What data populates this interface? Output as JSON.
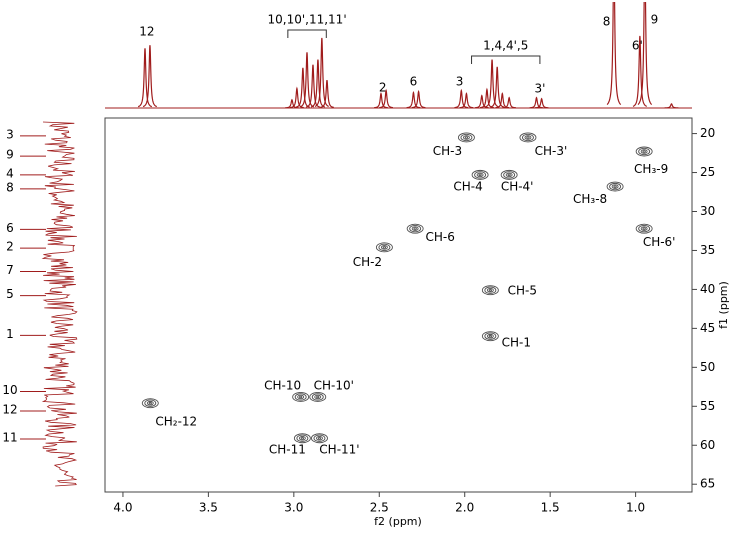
{
  "chart_data": {
    "type": "hsqc",
    "xlabel": "f2 (ppm)",
    "ylabel": "f1 (ppm)",
    "xlim": [
      4.105,
      0.67
    ],
    "xticks": [
      {
        "value": 4,
        "label": "4.0"
      },
      {
        "value": 3.5,
        "label": "3.5"
      },
      {
        "value": 3,
        "label": "3.0"
      },
      {
        "value": 2.5,
        "label": "2.5"
      },
      {
        "value": 2,
        "label": "2.0"
      },
      {
        "value": 1.5,
        "label": "1.5"
      },
      {
        "value": 1,
        "label": "1.0"
      }
    ],
    "ylim": [
      18,
      66
    ],
    "yticks": [
      20,
      25,
      30,
      35,
      40,
      45,
      50,
      55,
      60,
      65
    ],
    "color": "#a01c1c",
    "contour_color": "#505050",
    "cross_peaks": [
      {
        "label": "CH-3",
        "f2": 1.99,
        "f1": 20.5
      },
      {
        "label": "CH-3'",
        "f2": 1.63,
        "f1": 20.5
      },
      {
        "label": "CH-4",
        "f2": 1.91,
        "f1": 25.3
      },
      {
        "label": "CH-4'",
        "f2": 1.74,
        "f1": 25.3
      },
      {
        "label": "CH₃-9",
        "f2": 0.95,
        "f1": 22.3
      },
      {
        "label": "CH₃-8",
        "f2": 1.12,
        "f1": 26.8
      },
      {
        "label": "CH-6'",
        "f2": 0.95,
        "f1": 32.2
      },
      {
        "label": "CH-6",
        "f2": 2.29,
        "f1": 32.2
      },
      {
        "label": "CH-2",
        "f2": 2.47,
        "f1": 34.6
      },
      {
        "label": "CH-5",
        "f2": 1.85,
        "f1": 40.1
      },
      {
        "label": "CH-1",
        "f2": 1.85,
        "f1": 46.0
      },
      {
        "label": "CH-10",
        "f2": 2.96,
        "f1": 53.8
      },
      {
        "label": "CH-10'",
        "f2": 2.86,
        "f1": 53.8
      },
      {
        "label": "CH₂-12",
        "f2": 3.84,
        "f1": 54.6
      },
      {
        "label": "CH-11",
        "f2": 2.95,
        "f1": 59.1
      },
      {
        "label": "CH-11'",
        "f2": 2.85,
        "f1": 59.1
      }
    ],
    "proton_spectrum": {
      "ylim": [
        0,
        100
      ],
      "peaks": [
        {
          "ppm": 3.871,
          "height": 58
        },
        {
          "ppm": 3.842,
          "height": 61
        },
        {
          "ppm": 3.011,
          "height": 8
        },
        {
          "ppm": 2.982,
          "height": 19
        },
        {
          "ppm": 2.947,
          "height": 39
        },
        {
          "ppm": 2.923,
          "height": 54
        },
        {
          "ppm": 2.888,
          "height": 42
        },
        {
          "ppm": 2.859,
          "height": 47
        },
        {
          "ppm": 2.836,
          "height": 68
        },
        {
          "ppm": 2.806,
          "height": 27
        },
        {
          "ppm": 2.49,
          "height": 14
        },
        {
          "ppm": 2.46,
          "height": 17
        },
        {
          "ppm": 2.3,
          "height": 15
        },
        {
          "ppm": 2.27,
          "height": 16
        },
        {
          "ppm": 2.02,
          "height": 17
        },
        {
          "ppm": 1.99,
          "height": 14
        },
        {
          "ppm": 1.9,
          "height": 12
        },
        {
          "ppm": 1.87,
          "height": 18
        },
        {
          "ppm": 1.84,
          "height": 47
        },
        {
          "ppm": 1.81,
          "height": 40
        },
        {
          "ppm": 1.78,
          "height": 14
        },
        {
          "ppm": 1.74,
          "height": 10
        },
        {
          "ppm": 1.58,
          "height": 10
        },
        {
          "ppm": 1.55,
          "height": 9
        },
        {
          "ppm": 1.127,
          "height": 150
        },
        {
          "ppm": 0.975,
          "height": 70
        },
        {
          "ppm": 0.946,
          "height": 150
        },
        {
          "ppm": 0.79,
          "height": 4
        }
      ],
      "labels": [
        {
          "label": "12",
          "ppm": 3.86
        },
        {
          "label": "10,10',11,11'",
          "ppm_range": [
            3.035,
            2.81
          ]
        },
        {
          "label": "2",
          "ppm": 2.48
        },
        {
          "label": "6",
          "ppm": 2.3
        },
        {
          "label": "3",
          "ppm": 2.03
        },
        {
          "label": "1,4,4',5",
          "ppm_range": [
            1.96,
            1.56
          ]
        },
        {
          "label": "3'",
          "ppm": 1.56
        },
        {
          "label": "8",
          "ppm": 1.17
        },
        {
          "label": "6'",
          "ppm": 0.99
        },
        {
          "label": "9",
          "ppm": 0.89
        }
      ]
    },
    "carbon_labels": [
      {
        "label": "3",
        "ppm": 20.3
      },
      {
        "label": "9",
        "ppm": 22.9
      },
      {
        "label": "4",
        "ppm": 25.3
      },
      {
        "label": "8",
        "ppm": 27.1
      },
      {
        "label": "6",
        "ppm": 32.3
      },
      {
        "label": "2",
        "ppm": 34.7
      },
      {
        "label": "7",
        "ppm": 37.7
      },
      {
        "label": "5",
        "ppm": 40.8
      },
      {
        "label": "1",
        "ppm": 45.9
      },
      {
        "label": "10",
        "ppm": 53.1
      },
      {
        "label": "12",
        "ppm": 55.6
      },
      {
        "label": "11",
        "ppm": 59.2
      }
    ]
  }
}
